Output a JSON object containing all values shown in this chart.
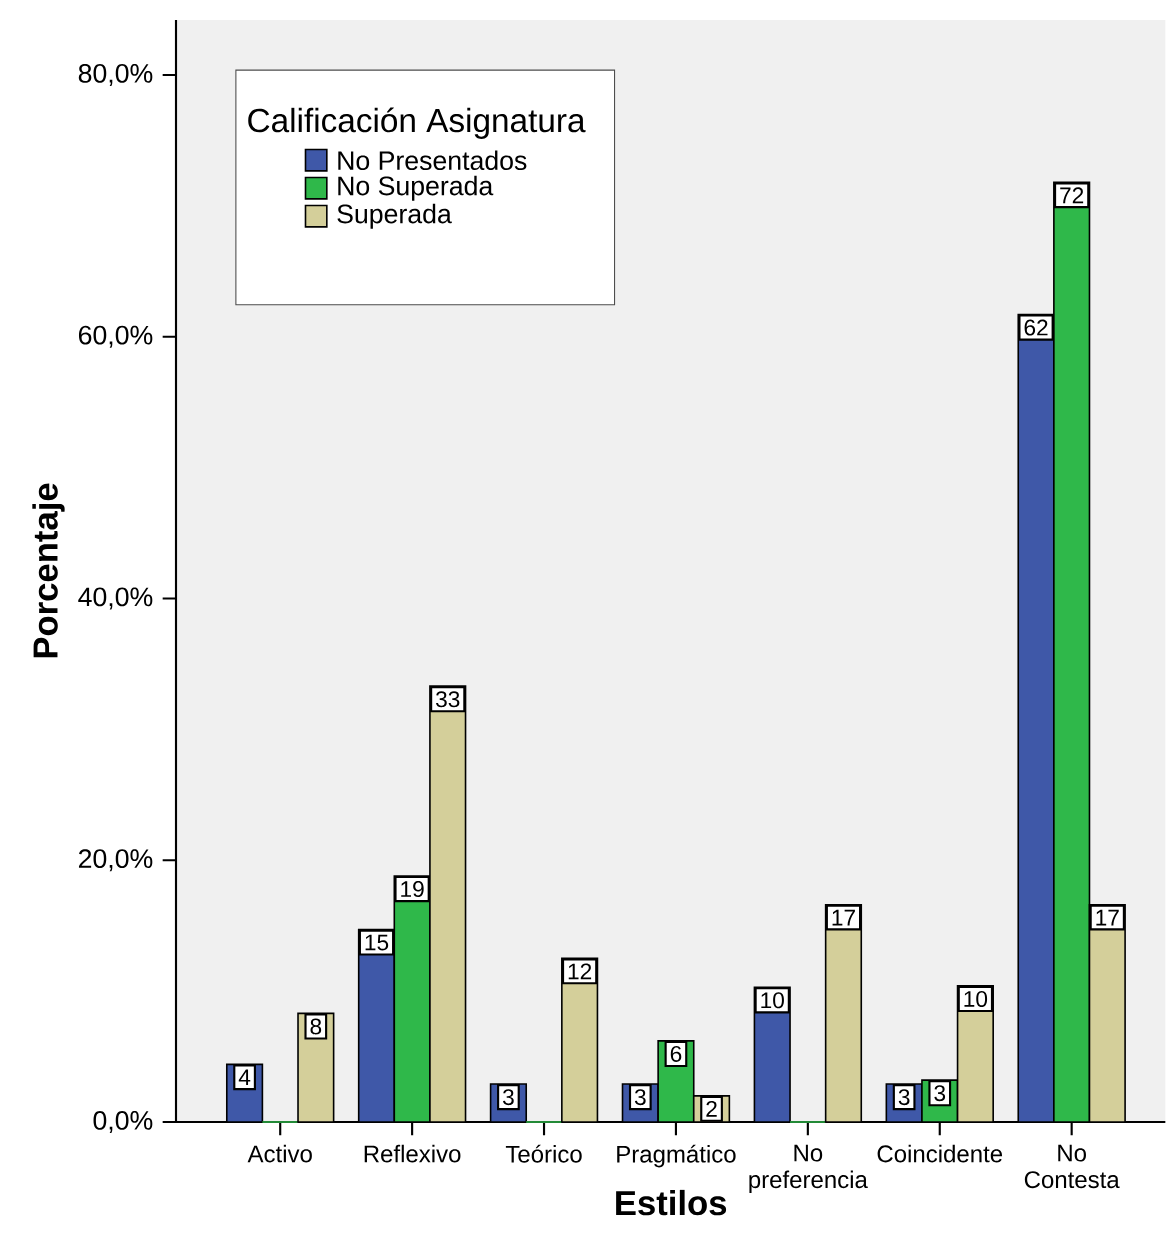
{
  "chart_data": {
    "type": "bar",
    "xlabel": "Estilos",
    "ylabel": "Porcentaje",
    "legend_title": "Calificación Asignatura",
    "categories": [
      "Activo",
      "Reflexivo",
      "Teórico",
      "Pragmático",
      "No preferencia",
      "Coincidente",
      "No Contesta"
    ],
    "series": [
      {
        "name": "No Presentados",
        "color": "#3f58a8",
        "values": [
          4.4,
          14.7,
          2.9,
          2.9,
          10.3,
          2.9,
          61.7
        ],
        "value_labels": [
          "4",
          "15",
          "3",
          "3",
          "10",
          "3",
          "62"
        ]
      },
      {
        "name": "No Superada",
        "color": "#2fb84a",
        "values": [
          0,
          18.8,
          0,
          6.2,
          0,
          3.2,
          71.8
        ],
        "value_labels": [
          null,
          "19",
          null,
          "6",
          null,
          "3",
          "72"
        ]
      },
      {
        "name": "Superada",
        "color": "#d4cf9a",
        "values": [
          8.3,
          33.3,
          12.5,
          2.0,
          16.6,
          10.4,
          16.6
        ],
        "value_labels": [
          "8",
          "33",
          "12",
          "2",
          "17",
          "10",
          "17"
        ]
      }
    ],
    "ylim": [
      0,
      84.2
    ],
    "yticks": [
      {
        "value": 0,
        "label": "0,0%"
      },
      {
        "value": 20,
        "label": "20,0%"
      },
      {
        "value": 40,
        "label": "40,0%"
      },
      {
        "value": 60,
        "label": "60,0%"
      },
      {
        "value": 80,
        "label": "80,0%"
      }
    ],
    "legend": "top left",
    "grid": false
  }
}
